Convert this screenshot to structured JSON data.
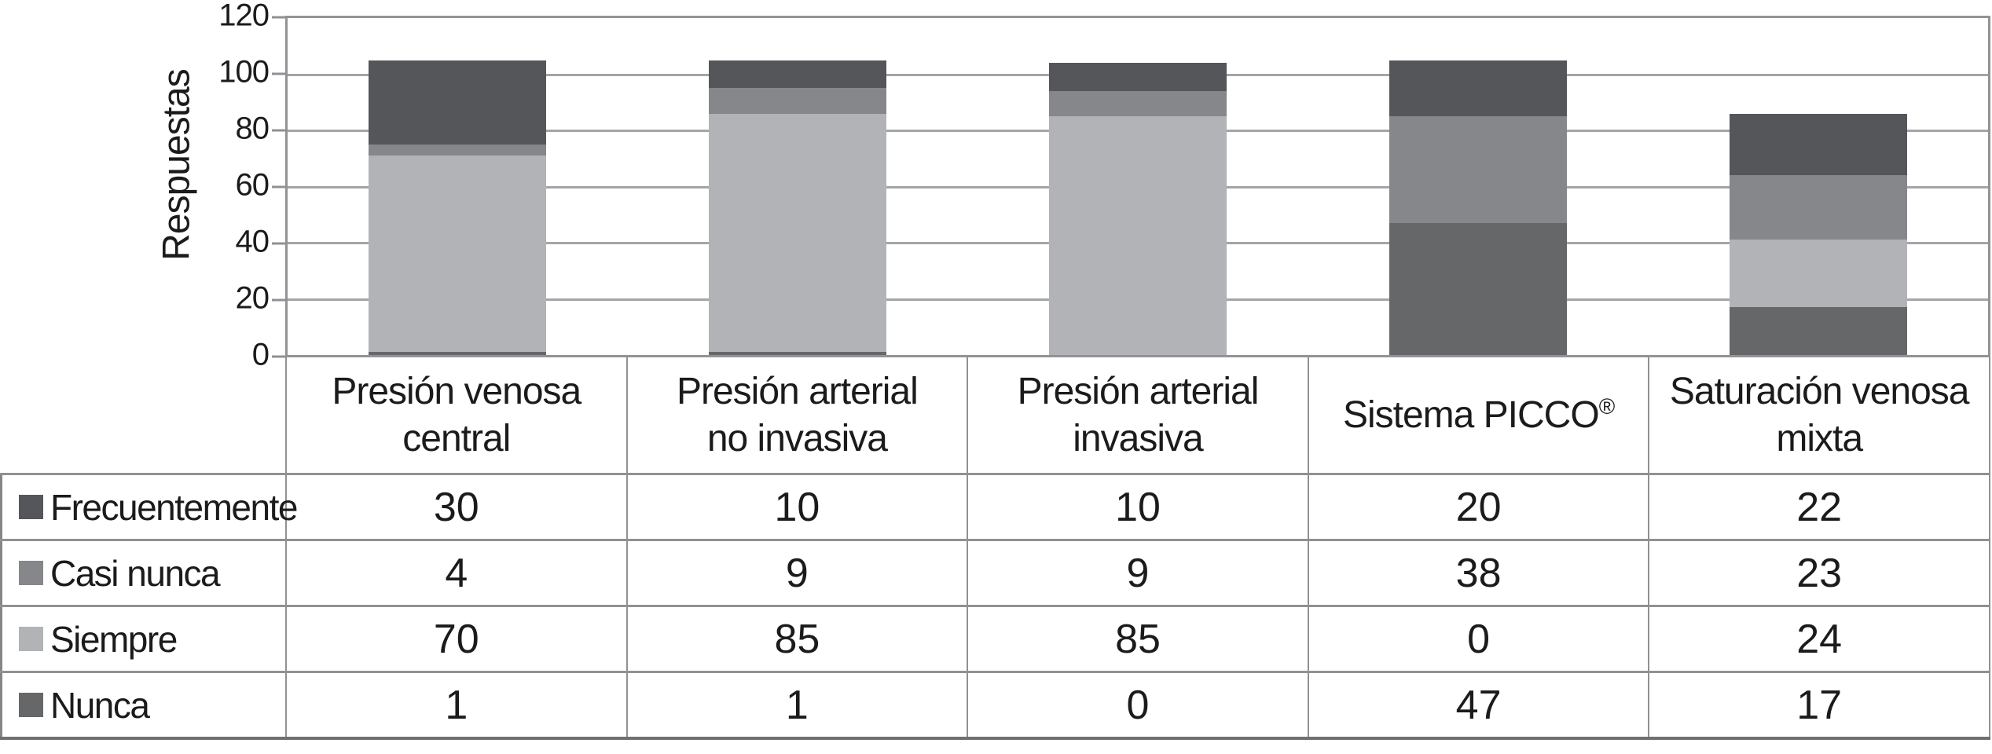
{
  "chart_data": {
    "type": "bar",
    "stacked": true,
    "title": "",
    "xlabel": "",
    "ylabel": "Respuestas",
    "ylim": [
      0,
      120
    ],
    "yticks": [
      0,
      20,
      40,
      60,
      80,
      100,
      120
    ],
    "grid": true,
    "legend_position": "table-left-column",
    "categories": [
      "Presión venosa central",
      "Presión arterial no invasiva",
      "Presión arterial invasiva",
      "Sistema PICCO®",
      "Saturación venosa mixta"
    ],
    "category_lines": [
      {
        "lines": [
          "Presión venosa",
          "central"
        ]
      },
      {
        "lines": [
          "Presión arterial",
          "no invasiva"
        ]
      },
      {
        "lines": [
          "Presión arterial",
          "invasiva"
        ]
      },
      {
        "lines": [
          "Sistema PICCO"
        ],
        "sup": "®"
      },
      {
        "lines": [
          "Saturación venosa",
          "mixta"
        ]
      }
    ],
    "stack_order_bottom_to_top": [
      "Nunca",
      "Siempre",
      "Casi nunca",
      "Frecuentemente"
    ],
    "series": [
      {
        "name": "Frecuentemente",
        "color": "#55565a",
        "values": [
          30,
          10,
          10,
          20,
          22
        ]
      },
      {
        "name": "Casi nunca",
        "color": "#85878a",
        "values": [
          4,
          9,
          9,
          38,
          23
        ]
      },
      {
        "name": "Siempre",
        "color": "#b1b3b6",
        "values": [
          70,
          85,
          85,
          0,
          24
        ]
      },
      {
        "name": "Nunca",
        "color": "#656769",
        "values": [
          1,
          1,
          0,
          47,
          17
        ]
      }
    ]
  }
}
